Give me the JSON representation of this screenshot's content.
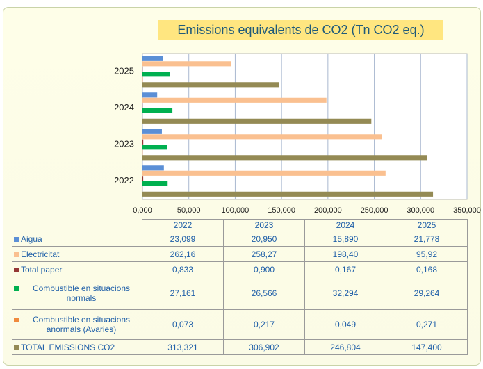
{
  "chart_data": {
    "type": "barh",
    "title": "Emissions equivalents de CO2 (Tn CO2 eq.)",
    "categories": [
      "2022",
      "2023",
      "2024",
      "2025"
    ],
    "series": [
      {
        "name": "Aigua",
        "color": "#5b8fd6",
        "values": [
          23.099,
          20.95,
          15.89,
          21.778
        ],
        "value_labels": [
          "23,099",
          "20,950",
          "15,890",
          "21,778"
        ]
      },
      {
        "name": "Electricitat",
        "color": "#fac090",
        "values": [
          262.16,
          258.27,
          198.4,
          95.92
        ],
        "value_labels": [
          "262,16",
          "258,27",
          "198,40",
          "95,92"
        ]
      },
      {
        "name": "Total paper",
        "color": "#953735",
        "values": [
          0.833,
          0.9,
          0.167,
          0.168
        ],
        "value_labels": [
          "0,833",
          "0,900",
          "0,167",
          "0,168"
        ]
      },
      {
        "name": "Combustible en situacions normals",
        "color": "#00b050",
        "values": [
          27.161,
          26.566,
          32.294,
          29.264
        ],
        "value_labels": [
          "27,161",
          "26,566",
          "32,294",
          "29,264"
        ]
      },
      {
        "name": "Combustible en situacions anormals (Avaries)",
        "color": "#f08a3c",
        "values": [
          0.073,
          0.217,
          0.049,
          0.271
        ],
        "value_labels": [
          "0,073",
          "0,217",
          "0,049",
          "0,271"
        ]
      },
      {
        "name": "TOTAL EMISSIONS CO2",
        "color": "#948a54",
        "values": [
          313.321,
          306.902,
          246.804,
          147.4
        ],
        "value_labels": [
          "313,321",
          "306,902",
          "246,804",
          "147,400"
        ]
      }
    ],
    "xlim": [
      0,
      350
    ],
    "xticks": [
      {
        "value": 0,
        "label": "0,000"
      },
      {
        "value": 50,
        "label": "50,000"
      },
      {
        "value": 100,
        "label": "100,000"
      },
      {
        "value": 150,
        "label": "150,000"
      },
      {
        "value": 200,
        "label": "200,000"
      },
      {
        "value": 250,
        "label": "250,000"
      },
      {
        "value": 300,
        "label": "300,000"
      },
      {
        "value": 350,
        "label": "350,000"
      }
    ],
    "grid": true
  }
}
